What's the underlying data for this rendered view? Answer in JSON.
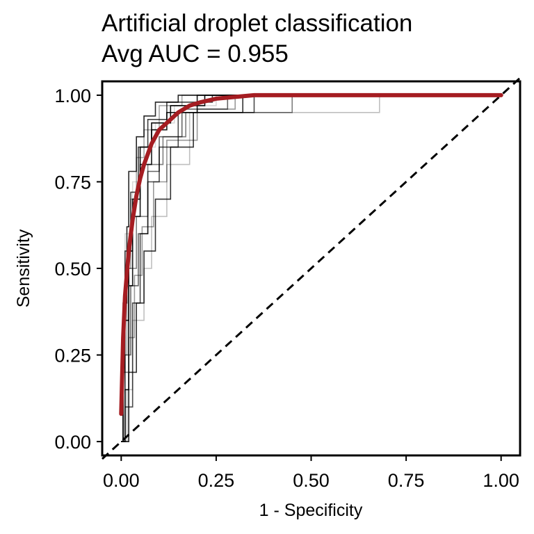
{
  "chart_data": {
    "type": "line",
    "title": "Artificial droplet classification",
    "subtitle": "Avg AUC = 0.955",
    "xlabel": "1 - Specificity",
    "ylabel": "Sensitivity",
    "xlim": [
      -0.05,
      1.05
    ],
    "ylim": [
      -0.04,
      1.04
    ],
    "xticks": [
      "0.00",
      "0.25",
      "0.50",
      "0.75",
      "1.00"
    ],
    "yticks": [
      "0.00",
      "0.25",
      "0.50",
      "0.75",
      "1.00"
    ],
    "grid": false,
    "legend": "none",
    "colors": {
      "average": "#a51d22",
      "reference": "#000000",
      "replicates": "#000000"
    },
    "series": [
      {
        "role": "average",
        "x": [
          0,
          0.005,
          0.01,
          0.02,
          0.03,
          0.04,
          0.05,
          0.06,
          0.08,
          0.1,
          0.12,
          0.15,
          0.18,
          0.21,
          0.25,
          0.3,
          0.35,
          0.45,
          0.6,
          0.8,
          1.0
        ],
        "y": [
          0.08,
          0.3,
          0.42,
          0.55,
          0.64,
          0.71,
          0.76,
          0.8,
          0.86,
          0.9,
          0.92,
          0.95,
          0.97,
          0.98,
          0.99,
          0.995,
          1.0,
          1.0,
          1.0,
          1.0,
          1.0
        ]
      },
      {
        "role": "reference",
        "x": [
          0,
          1
        ],
        "y": [
          0,
          1
        ]
      },
      {
        "role": "replicate",
        "x": [
          0,
          0.01,
          0.01,
          0.02,
          0.02,
          0.03,
          0.03,
          0.05,
          0.05,
          0.08,
          0.08,
          0.12,
          0.12,
          0.2,
          0.2,
          1.0
        ],
        "y": [
          0,
          0,
          0.15,
          0.15,
          0.45,
          0.45,
          0.65,
          0.65,
          0.8,
          0.8,
          0.9,
          0.9,
          0.95,
          0.95,
          1.0,
          1.0
        ]
      },
      {
        "role": "replicate",
        "x": [
          0,
          0.005,
          0.005,
          0.015,
          0.015,
          0.025,
          0.025,
          0.04,
          0.04,
          0.06,
          0.06,
          0.1,
          0.1,
          0.16,
          0.16,
          1.0
        ],
        "y": [
          0,
          0,
          0.25,
          0.25,
          0.5,
          0.5,
          0.7,
          0.7,
          0.82,
          0.82,
          0.9,
          0.9,
          0.97,
          0.97,
          1.0,
          1.0
        ]
      },
      {
        "role": "replicate",
        "x": [
          0,
          0.01,
          0.01,
          0.03,
          0.03,
          0.05,
          0.05,
          0.07,
          0.07,
          0.1,
          0.1,
          0.15,
          0.15,
          0.35,
          0.35,
          1.0
        ],
        "y": [
          0,
          0,
          0.1,
          0.1,
          0.4,
          0.4,
          0.6,
          0.6,
          0.75,
          0.75,
          0.85,
          0.85,
          0.95,
          0.95,
          1.0,
          1.0
        ]
      },
      {
        "role": "replicate",
        "x": [
          0,
          0.005,
          0.005,
          0.01,
          0.01,
          0.03,
          0.03,
          0.05,
          0.05,
          0.09,
          0.09,
          0.14,
          0.14,
          0.25,
          0.25,
          1.0
        ],
        "y": [
          0,
          0,
          0.3,
          0.3,
          0.6,
          0.6,
          0.75,
          0.75,
          0.85,
          0.85,
          0.92,
          0.92,
          0.97,
          0.97,
          1.0,
          1.0
        ]
      },
      {
        "role": "replicate",
        "x": [
          0,
          0.02,
          0.02,
          0.04,
          0.04,
          0.06,
          0.06,
          0.09,
          0.09,
          0.13,
          0.13,
          0.19,
          0.19,
          0.32,
          0.32,
          1.0
        ],
        "y": [
          0,
          0,
          0.2,
          0.2,
          0.4,
          0.4,
          0.55,
          0.55,
          0.7,
          0.7,
          0.85,
          0.85,
          0.95,
          0.95,
          1.0,
          1.0
        ]
      },
      {
        "role": "replicate",
        "x": [
          0,
          0.01,
          0.01,
          0.02,
          0.02,
          0.04,
          0.04,
          0.07,
          0.07,
          0.11,
          0.11,
          0.17,
          0.17,
          0.45,
          0.45,
          1.0
        ],
        "y": [
          0,
          0,
          0.2,
          0.2,
          0.5,
          0.5,
          0.65,
          0.65,
          0.8,
          0.8,
          0.88,
          0.88,
          0.95,
          0.95,
          1.0,
          1.0
        ]
      },
      {
        "role": "replicate",
        "x": [
          0,
          0.005,
          0.005,
          0.02,
          0.02,
          0.03,
          0.03,
          0.05,
          0.05,
          0.08,
          0.08,
          0.13,
          0.13,
          0.22,
          0.22,
          1.0
        ],
        "y": [
          0,
          0,
          0.35,
          0.35,
          0.55,
          0.55,
          0.7,
          0.7,
          0.85,
          0.85,
          0.92,
          0.92,
          0.97,
          0.97,
          1.0,
          1.0
        ]
      },
      {
        "role": "replicate",
        "x": [
          0,
          0.015,
          0.015,
          0.03,
          0.03,
          0.06,
          0.06,
          0.08,
          0.08,
          0.12,
          0.12,
          0.18,
          0.18,
          0.68,
          0.68,
          1.0
        ],
        "y": [
          0,
          0,
          0.15,
          0.15,
          0.35,
          0.35,
          0.5,
          0.5,
          0.65,
          0.65,
          0.8,
          0.8,
          0.95,
          0.95,
          1.0,
          1.0
        ]
      },
      {
        "role": "replicate",
        "x": [
          0,
          0.005,
          0.005,
          0.015,
          0.015,
          0.02,
          0.02,
          0.04,
          0.04,
          0.06,
          0.06,
          0.09,
          0.09,
          0.15,
          0.15,
          1.0
        ],
        "y": [
          0,
          0,
          0.4,
          0.4,
          0.62,
          0.62,
          0.78,
          0.78,
          0.88,
          0.88,
          0.94,
          0.94,
          0.98,
          0.98,
          1.0,
          1.0
        ]
      },
      {
        "role": "replicate",
        "x": [
          0,
          0.01,
          0.01,
          0.025,
          0.025,
          0.045,
          0.045,
          0.07,
          0.07,
          0.1,
          0.1,
          0.16,
          0.16,
          0.28,
          0.28,
          1.0
        ],
        "y": [
          0,
          0,
          0.25,
          0.25,
          0.45,
          0.45,
          0.6,
          0.6,
          0.78,
          0.78,
          0.88,
          0.88,
          0.96,
          0.96,
          1.0,
          1.0
        ]
      },
      {
        "role": "replicate",
        "x": [
          0,
          0.005,
          0.005,
          0.01,
          0.01,
          0.025,
          0.025,
          0.045,
          0.045,
          0.07,
          0.07,
          0.12,
          0.12,
          0.24,
          0.24,
          1.0
        ],
        "y": [
          0,
          0,
          0.2,
          0.2,
          0.55,
          0.55,
          0.72,
          0.72,
          0.85,
          0.85,
          0.93,
          0.93,
          0.98,
          0.98,
          1.0,
          1.0
        ]
      },
      {
        "role": "replicate",
        "x": [
          0,
          0.02,
          0.02,
          0.035,
          0.035,
          0.055,
          0.055,
          0.085,
          0.085,
          0.12,
          0.12,
          0.2,
          0.2,
          0.3,
          0.3,
          1.0
        ],
        "y": [
          0,
          0,
          0.3,
          0.3,
          0.48,
          0.48,
          0.62,
          0.62,
          0.75,
          0.75,
          0.87,
          0.87,
          0.96,
          0.96,
          1.0,
          1.0
        ]
      }
    ]
  }
}
